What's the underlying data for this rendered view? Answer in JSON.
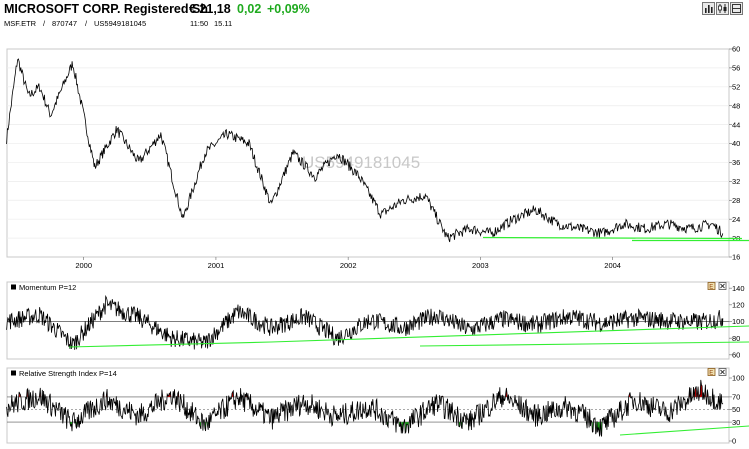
{
  "header": {
    "title": "MICROSOFT CORP. Registered Sh",
    "price": "€ 21,18",
    "change": "0,02",
    "change_pct": "+0,09%",
    "exchange": "MSF.ETR",
    "sep1": "/",
    "wkn": "870747",
    "sep2": "/",
    "isin": "US5949181045",
    "time": "11:50",
    "date": "15.11",
    "toolbar_icons": [
      "bar-chart-icon",
      "candlestick-icon",
      "panel-toggle-icon",
      "close-icon"
    ]
  },
  "chart_data": [
    {
      "type": "line",
      "name": "price",
      "watermark": "US5949181045",
      "x_tick_labels": [
        "2000",
        "2001",
        "2002",
        "2003",
        "2004"
      ],
      "y_tick_labels": [
        "60",
        "56",
        "52",
        "48",
        "44",
        "40",
        "36",
        "32",
        "28",
        "24",
        "20",
        "16"
      ],
      "ylim": [
        16,
        60
      ],
      "series_color": "#000000",
      "trendline_color": "#33ee33",
      "x": [
        "1999-06",
        "1999-07",
        "1999-08",
        "1999-09",
        "1999-10",
        "1999-12",
        "2000-02",
        "2000-04",
        "2000-06",
        "2000-08",
        "2000-10",
        "2000-12",
        "2001-02",
        "2001-04",
        "2001-06",
        "2001-08",
        "2001-10",
        "2001-12",
        "2002-02",
        "2002-04",
        "2002-06",
        "2002-08",
        "2002-10",
        "2002-12",
        "2003-02",
        "2003-04",
        "2003-06",
        "2003-08",
        "2003-10",
        "2003-12",
        "2004-02",
        "2004-04",
        "2004-06",
        "2004-08",
        "2004-10",
        "2004-11"
      ],
      "values": [
        41,
        58,
        50,
        52,
        46,
        57,
        35,
        43,
        36,
        42,
        24,
        38,
        42,
        40,
        27,
        38,
        33,
        38,
        33,
        25,
        28,
        29,
        20,
        22,
        21,
        24,
        26,
        23,
        22,
        21,
        23,
        22,
        23,
        22,
        23,
        21
      ]
    },
    {
      "type": "line",
      "name": "Momentum P=12",
      "title": "Momentum P=12",
      "y_tick_labels": [
        "140",
        "120",
        "100",
        "80",
        "60"
      ],
      "ylim": [
        55,
        145
      ],
      "reference_line": 100,
      "series_color": "#000000",
      "trendline_color": "#33ee33",
      "x": [
        "1999-06",
        "1999-09",
        "1999-12",
        "2000-03",
        "2000-06",
        "2000-09",
        "2000-12",
        "2001-03",
        "2001-06",
        "2001-09",
        "2001-12",
        "2002-03",
        "2002-06",
        "2002-09",
        "2002-12",
        "2003-03",
        "2003-06",
        "2003-09",
        "2003-12",
        "2004-03",
        "2004-06",
        "2004-09",
        "2004-11"
      ],
      "values": [
        100,
        108,
        72,
        120,
        105,
        80,
        74,
        112,
        92,
        106,
        80,
        102,
        92,
        108,
        90,
        103,
        96,
        106,
        98,
        104,
        101,
        99,
        104
      ]
    },
    {
      "type": "line",
      "name": "Relative Strength Index P=14",
      "title": "Relative Strength Index P=14",
      "y_tick_labels": [
        "100",
        "70",
        "50",
        "30",
        "0"
      ],
      "ylim": [
        0,
        100
      ],
      "reference_lines": [
        70,
        50,
        30
      ],
      "series_color": "#000000",
      "overbought_color": "#b10000",
      "oversold_color": "#119911",
      "trendline_color": "#33ee33",
      "x": [
        "1999-06",
        "1999-09",
        "1999-12",
        "2000-03",
        "2000-06",
        "2000-09",
        "2000-12",
        "2001-03",
        "2001-06",
        "2001-09",
        "2001-12",
        "2002-03",
        "2002-06",
        "2002-09",
        "2002-12",
        "2003-03",
        "2003-06",
        "2003-09",
        "2003-12",
        "2004-03",
        "2004-06",
        "2004-09",
        "2004-11"
      ],
      "values": [
        55,
        72,
        28,
        66,
        40,
        74,
        25,
        70,
        35,
        62,
        38,
        55,
        22,
        60,
        30,
        72,
        40,
        55,
        22,
        66,
        45,
        80,
        60
      ]
    }
  ]
}
